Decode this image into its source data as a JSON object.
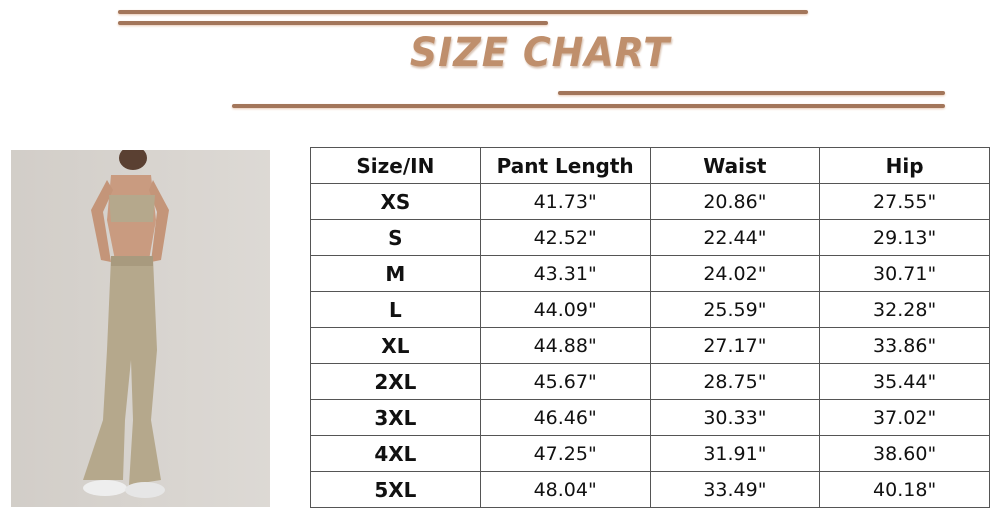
{
  "title": "SIZE CHART",
  "colors": {
    "accent_line": "#a3765a",
    "title": "#bf8f6c",
    "photo_bg": "#d8d4cf",
    "garment": "#b5a88c"
  },
  "photo": {
    "subject": "model-wearing-sports-bra-and-flare-pants"
  },
  "table": {
    "headers": [
      "Size/IN",
      "Pant Length",
      "Waist",
      "Hip"
    ],
    "rows": [
      [
        "XS",
        "41.73\"",
        "20.86\"",
        "27.55\""
      ],
      [
        "S",
        "42.52\"",
        "22.44\"",
        "29.13\""
      ],
      [
        "M",
        "43.31\"",
        "24.02\"",
        "30.71\""
      ],
      [
        "L",
        "44.09\"",
        "25.59\"",
        "32.28\""
      ],
      [
        "XL",
        "44.88\"",
        "27.17\"",
        "33.86\""
      ],
      [
        "2XL",
        "45.67\"",
        "28.75\"",
        "35.44\""
      ],
      [
        "3XL",
        "46.46\"",
        "30.33\"",
        "37.02\""
      ],
      [
        "4XL",
        "47.25\"",
        "31.91\"",
        "38.60\""
      ],
      [
        "5XL",
        "48.04\"",
        "33.49\"",
        "40.18\""
      ]
    ]
  }
}
